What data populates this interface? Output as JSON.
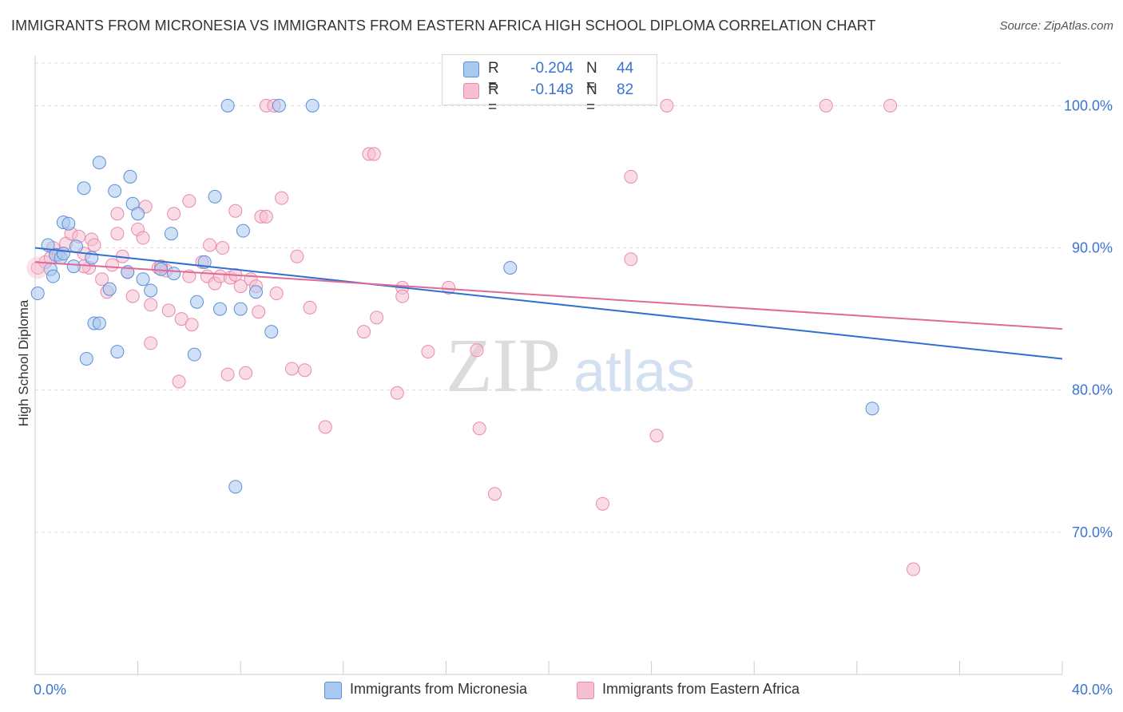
{
  "title": "IMMIGRANTS FROM MICRONESIA VS IMMIGRANTS FROM EASTERN AFRICA HIGH SCHOOL DIPLOMA CORRELATION CHART",
  "source": "Source: ZipAtlas.com",
  "watermark": {
    "zip": "ZIP",
    "atlas": "atlas"
  },
  "colors": {
    "series1_fill": "#a9c8f0",
    "series1_stroke": "#5b8fd8",
    "series1_line": "#2f6fd0",
    "series2_fill": "#f6bfd1",
    "series2_stroke": "#e88aab",
    "series2_line": "#e06a96",
    "tick_label": "#3b73d4",
    "grid": "#dddddd"
  },
  "stats": [
    {
      "r_label": "R =",
      "r_value": "-0.204",
      "n_label": "N =",
      "n_value": "44"
    },
    {
      "r_label": "R =",
      "r_value": "-0.148",
      "n_label": "N =",
      "n_value": "82"
    }
  ],
  "chart_data": {
    "type": "scatter",
    "title": "IMMIGRANTS FROM MICRONESIA VS IMMIGRANTS FROM EASTERN AFRICA HIGH SCHOOL DIPLOMA CORRELATION CHART",
    "xlabel": "",
    "ylabel": "High School Diploma",
    "xlim": [
      0,
      40
    ],
    "ylim": [
      60,
      103.5
    ],
    "x_tick_labels": [
      {
        "value": 0,
        "label": "0.0%"
      },
      {
        "value": 40,
        "label": "40.0%"
      }
    ],
    "y_tick_labels": [
      {
        "value": 100,
        "label": "100.0%"
      },
      {
        "value": 90,
        "label": "90.0%"
      },
      {
        "value": 80,
        "label": "80.0%"
      },
      {
        "value": 70,
        "label": "70.0%"
      }
    ],
    "grid": true,
    "legend_position": "bottom",
    "series": [
      {
        "name": "Immigrants from Micronesia",
        "r": -0.204,
        "n": 44,
        "trend": {
          "x": [
            0,
            40
          ],
          "y": [
            90.0,
            82.2
          ]
        },
        "points": [
          [
            0.1,
            86.8
          ],
          [
            0.5,
            90.2
          ],
          [
            0.6,
            88.5
          ],
          [
            0.7,
            88.0
          ],
          [
            0.8,
            89.5
          ],
          [
            1.0,
            89.3
          ],
          [
            1.1,
            89.6
          ],
          [
            1.1,
            91.8
          ],
          [
            1.3,
            91.7
          ],
          [
            1.5,
            88.7
          ],
          [
            1.6,
            90.1
          ],
          [
            1.9,
            94.2
          ],
          [
            2.2,
            89.3
          ],
          [
            2.3,
            84.7
          ],
          [
            2.5,
            84.7
          ],
          [
            2.5,
            96.0
          ],
          [
            2.9,
            87.1
          ],
          [
            3.1,
            94.0
          ],
          [
            3.2,
            82.7
          ],
          [
            3.6,
            88.3
          ],
          [
            3.7,
            95.0
          ],
          [
            3.8,
            93.1
          ],
          [
            4.0,
            92.4
          ],
          [
            4.2,
            87.8
          ],
          [
            4.5,
            87.0
          ],
          [
            4.9,
            88.5
          ],
          [
            5.3,
            91.0
          ],
          [
            5.4,
            88.2
          ],
          [
            6.2,
            82.5
          ],
          [
            6.3,
            86.2
          ],
          [
            6.6,
            89.0
          ],
          [
            7.0,
            93.6
          ],
          [
            7.2,
            85.7
          ],
          [
            7.5,
            100.0
          ],
          [
            8.0,
            85.7
          ],
          [
            8.1,
            91.2
          ],
          [
            8.6,
            86.9
          ],
          [
            9.2,
            84.1
          ],
          [
            9.5,
            100.0
          ],
          [
            10.8,
            100.0
          ],
          [
            18.5,
            88.6
          ],
          [
            32.6,
            78.7
          ],
          [
            7.8,
            73.2
          ],
          [
            2.0,
            82.2
          ]
        ]
      },
      {
        "name": "Immigrants from Eastern Africa",
        "r": -0.148,
        "n": 82,
        "trend": {
          "x": [
            0,
            40
          ],
          "y": [
            89.0,
            84.3
          ]
        },
        "points": [
          [
            0.1,
            88.6
          ],
          [
            0.4,
            89.0
          ],
          [
            0.6,
            89.3
          ],
          [
            0.7,
            90.0
          ],
          [
            0.9,
            89.5
          ],
          [
            1.2,
            90.3
          ],
          [
            1.4,
            91.0
          ],
          [
            1.7,
            90.8
          ],
          [
            1.9,
            89.6
          ],
          [
            2.1,
            88.6
          ],
          [
            2.2,
            90.6
          ],
          [
            2.3,
            90.2
          ],
          [
            2.6,
            87.8
          ],
          [
            2.8,
            86.9
          ],
          [
            3.0,
            88.8
          ],
          [
            3.2,
            92.4
          ],
          [
            3.2,
            91.0
          ],
          [
            3.4,
            89.4
          ],
          [
            3.6,
            88.3
          ],
          [
            3.8,
            86.6
          ],
          [
            4.0,
            91.3
          ],
          [
            4.2,
            90.7
          ],
          [
            4.3,
            92.9
          ],
          [
            4.5,
            86.0
          ],
          [
            4.5,
            83.3
          ],
          [
            4.8,
            88.6
          ],
          [
            5.1,
            88.4
          ],
          [
            5.2,
            85.6
          ],
          [
            5.4,
            92.4
          ],
          [
            5.6,
            80.6
          ],
          [
            5.7,
            85.0
          ],
          [
            6.0,
            88.0
          ],
          [
            6.0,
            93.3
          ],
          [
            6.1,
            84.6
          ],
          [
            6.5,
            89.0
          ],
          [
            6.7,
            88.0
          ],
          [
            6.8,
            90.2
          ],
          [
            7.0,
            87.5
          ],
          [
            7.2,
            88.0
          ],
          [
            7.3,
            90.0
          ],
          [
            7.5,
            81.1
          ],
          [
            7.6,
            87.9
          ],
          [
            7.8,
            88.1
          ],
          [
            7.8,
            92.6
          ],
          [
            8.0,
            87.3
          ],
          [
            8.2,
            81.2
          ],
          [
            8.4,
            87.8
          ],
          [
            8.6,
            87.3
          ],
          [
            8.7,
            85.5
          ],
          [
            8.8,
            92.2
          ],
          [
            9.0,
            92.2
          ],
          [
            9.0,
            100.0
          ],
          [
            9.3,
            100.0
          ],
          [
            9.4,
            86.8
          ],
          [
            9.6,
            93.5
          ],
          [
            10.0,
            81.5
          ],
          [
            10.2,
            89.4
          ],
          [
            10.5,
            81.4
          ],
          [
            10.7,
            85.8
          ],
          [
            11.3,
            77.4
          ],
          [
            12.8,
            84.1
          ],
          [
            13.0,
            96.6
          ],
          [
            13.2,
            96.6
          ],
          [
            13.3,
            85.1
          ],
          [
            14.1,
            79.8
          ],
          [
            14.3,
            87.2
          ],
          [
            14.3,
            86.6
          ],
          [
            15.3,
            82.7
          ],
          [
            16.1,
            87.2
          ],
          [
            17.2,
            82.8
          ],
          [
            17.3,
            77.3
          ],
          [
            17.9,
            72.7
          ],
          [
            22.1,
            72.0
          ],
          [
            23.2,
            95.0
          ],
          [
            23.2,
            89.2
          ],
          [
            24.2,
            76.8
          ],
          [
            24.6,
            100.0
          ],
          [
            30.8,
            100.0
          ],
          [
            33.3,
            100.0
          ],
          [
            34.2,
            67.4
          ],
          [
            4.9,
            88.7
          ],
          [
            1.9,
            88.7
          ]
        ]
      }
    ]
  }
}
